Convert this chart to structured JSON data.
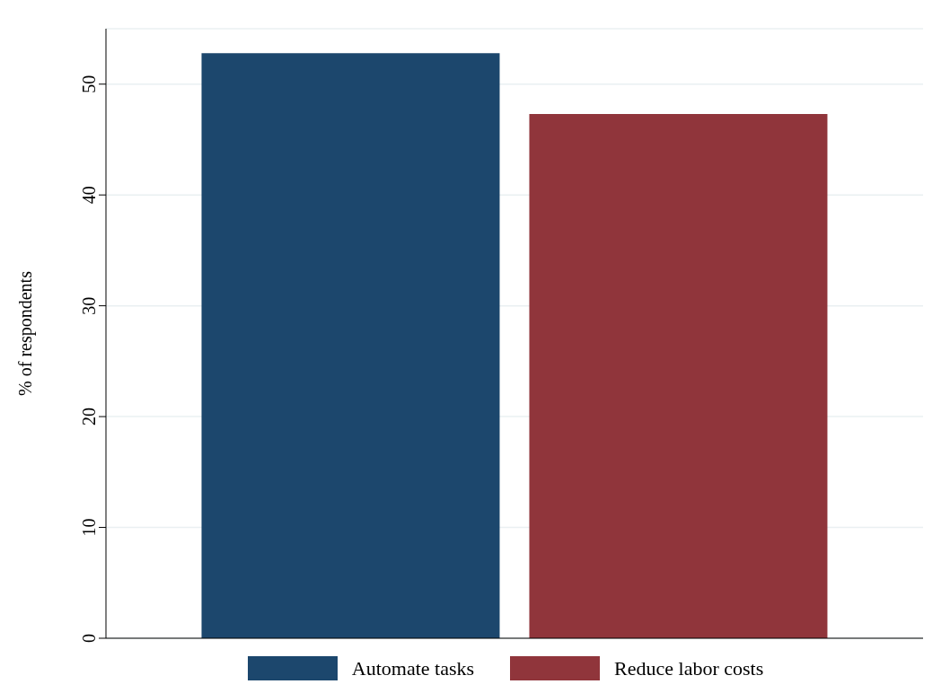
{
  "chart_data": {
    "type": "bar",
    "ylabel": "% of respondents",
    "categories": [
      null
    ],
    "series": [
      {
        "name": "Automate tasks",
        "color": "#1c476d",
        "values": [
          52.8
        ]
      },
      {
        "name": "Reduce labor costs",
        "color": "#90353b",
        "values": [
          47.3
        ]
      }
    ],
    "ylim": [
      0,
      55
    ],
    "yticks": [
      0,
      10,
      20,
      30,
      40,
      50
    ],
    "grid": "y",
    "legend": "bottom"
  }
}
